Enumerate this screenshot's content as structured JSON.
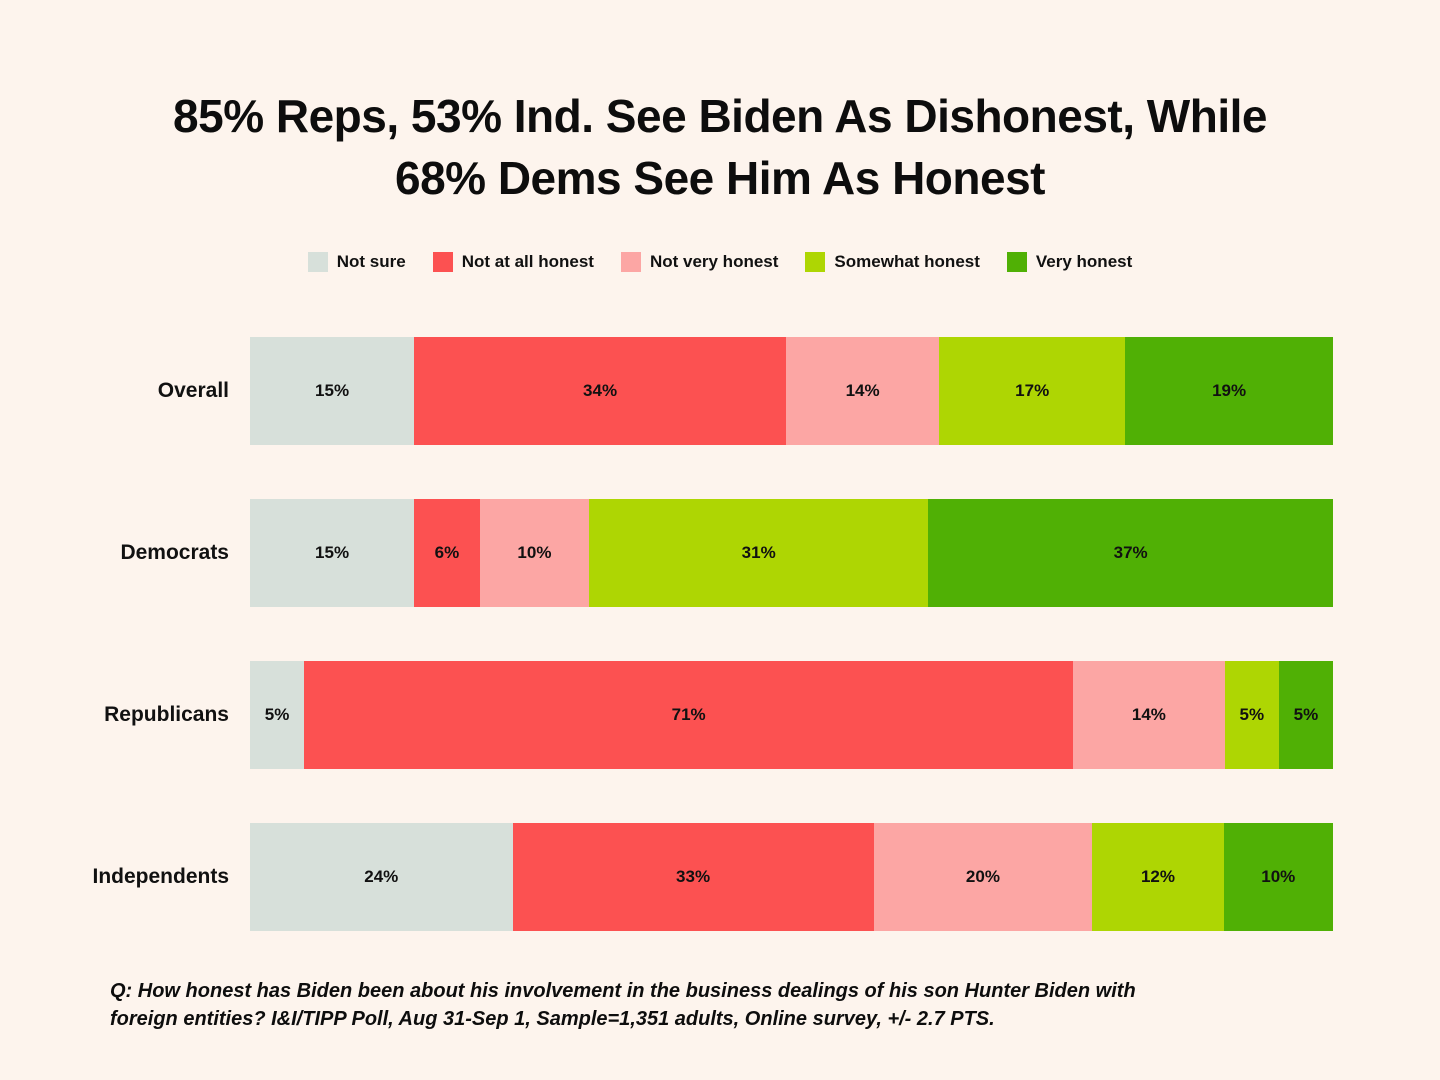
{
  "background_color": "#fdf4ed",
  "text_color": "#111111",
  "title": {
    "line1": "85% Reps, 53% Ind. See Biden As Dishonest, While",
    "line2": "68% Dems See Him As Honest"
  },
  "legend": [
    {
      "label": "Not sure",
      "color": "#d7e0da"
    },
    {
      "label": "Not at all honest",
      "color": "#fc5151"
    },
    {
      "label": "Not very honest",
      "color": "#fca6a4"
    },
    {
      "label": "Somewhat honest",
      "color": "#aed603"
    },
    {
      "label": "Very honest",
      "color": "#50b005"
    }
  ],
  "chart_data": {
    "type": "bar",
    "subtype": "horizontal-stacked",
    "title": "85% Reps, 53% Ind. See Biden As Dishonest, While 68% Dems See Him As Honest",
    "categories": [
      "Overall",
      "Democrats",
      "Republicans",
      "Independents"
    ],
    "series": [
      {
        "name": "Not sure",
        "color": "#d7e0da",
        "values": [
          15,
          15,
          5,
          24
        ]
      },
      {
        "name": "Not at all honest",
        "color": "#fc5151",
        "values": [
          34,
          6,
          71,
          33
        ]
      },
      {
        "name": "Not very honest",
        "color": "#fca6a4",
        "values": [
          14,
          10,
          14,
          20
        ]
      },
      {
        "name": "Somewhat honest",
        "color": "#aed603",
        "values": [
          17,
          31,
          5,
          12
        ]
      },
      {
        "name": "Very honest",
        "color": "#50b005",
        "values": [
          19,
          37,
          5,
          10
        ]
      }
    ],
    "value_suffix": "%",
    "value_labels": "inside-center",
    "xlim": [
      0,
      100
    ],
    "grid": false,
    "axes_shown": false,
    "legend_position": "top-center"
  },
  "footnote": {
    "line1": "Q: How honest has Biden been about his involvement in the business dealings of his son Hunter Biden with",
    "line2": "foreign entities? I&I/TIPP Poll, Aug 31-Sep 1, Sample=1,351 adults, Online survey, +/- 2.7 PTS."
  }
}
